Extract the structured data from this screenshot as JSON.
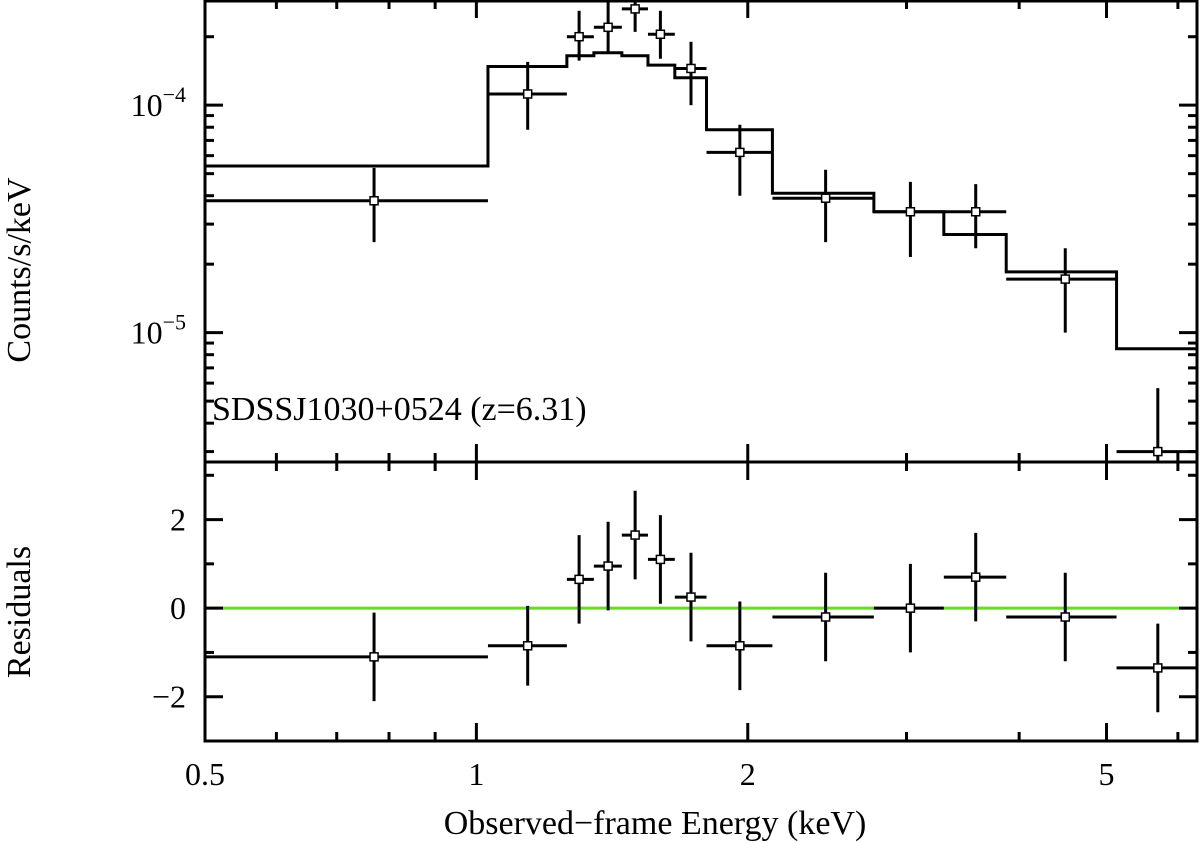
{
  "chart_data": [
    {
      "panel": "spectrum",
      "type": "scatter",
      "title": "",
      "annotation": "SDSSJ1030+0524 (z=6.31)",
      "xlabel": "Observed−frame Energy (keV)",
      "ylabel": "Counts/s/keV",
      "xscale": "log",
      "yscale": "log",
      "xlim": [
        0.5,
        6.3
      ],
      "ylim": [
        2.7e-06,
        0.00029
      ],
      "ytick_labels": [
        {
          "value": 0.0001,
          "base": "10",
          "exp": "−4"
        },
        {
          "value": 1e-05,
          "base": "10",
          "exp": "−5"
        }
      ],
      "grid": false,
      "data": {
        "x_low": [
          0.5,
          1.03,
          1.26,
          1.35,
          1.45,
          1.55,
          1.66,
          1.8,
          2.13,
          2.76,
          3.3,
          3.87,
          5.13
        ],
        "x_high": [
          1.03,
          1.26,
          1.35,
          1.45,
          1.55,
          1.66,
          1.8,
          2.13,
          2.76,
          3.3,
          3.87,
          5.13,
          6.3
        ],
        "x_center": [
          0.77,
          1.14,
          1.3,
          1.4,
          1.5,
          1.6,
          1.73,
          1.96,
          2.44,
          3.03,
          3.58,
          4.5,
          5.7
        ],
        "y": [
          3.8e-05,
          0.000112,
          0.0002,
          0.00022,
          0.000265,
          0.000205,
          0.000145,
          6.2e-05,
          3.9e-05,
          3.4e-05,
          3.4e-05,
          1.72e-05,
          3e-06
        ],
        "y_err_low": [
          2.5e-05,
          7.8e-05,
          0.000157,
          0.00017,
          0.00021,
          0.00016,
          0.0001,
          4e-05,
          2.5e-05,
          2.15e-05,
          2.35e-05,
          1e-05,
          2.4e-06
        ],
        "y_err_high": [
          5.3e-05,
          0.000155,
          0.00026,
          0.000285,
          0.0003,
          0.00026,
          0.00019,
          8.2e-05,
          5.2e-05,
          4.6e-05,
          4.5e-05,
          2.35e-05,
          5.7e-06
        ],
        "model": [
          5.4e-05,
          0.000148,
          0.000165,
          0.00017,
          0.000165,
          0.00015,
          0.000132,
          7.8e-05,
          4.1e-05,
          3.4e-05,
          2.7e-05,
          1.85e-05,
          8.5e-06
        ]
      }
    },
    {
      "panel": "residuals",
      "type": "scatter",
      "title": "",
      "xlabel": "Observed−frame Energy (keV)",
      "ylabel": "Residuals",
      "xscale": "log",
      "xlim": [
        0.5,
        6.3
      ],
      "ylim": [
        -3.0,
        3.3
      ],
      "x_ticks": [
        0.5,
        1,
        2,
        5
      ],
      "x_tick_labels": [
        "0.5",
        "1",
        "2",
        "5"
      ],
      "y_ticks": [
        -2,
        0,
        2
      ],
      "y_tick_labels": [
        "−2",
        "0",
        "2"
      ],
      "zero_line_color": "#66dd22",
      "grid": false,
      "data": {
        "x_low": [
          0.5,
          1.03,
          1.26,
          1.35,
          1.45,
          1.55,
          1.66,
          1.8,
          2.13,
          2.76,
          3.3,
          3.87,
          5.13
        ],
        "x_high": [
          1.03,
          1.26,
          1.35,
          1.45,
          1.55,
          1.66,
          1.8,
          2.13,
          2.76,
          3.3,
          3.87,
          5.13,
          6.3
        ],
        "x_center": [
          0.77,
          1.14,
          1.3,
          1.4,
          1.5,
          1.6,
          1.73,
          1.96,
          2.44,
          3.03,
          3.58,
          4.5,
          5.7
        ],
        "y": [
          -1.1,
          -0.85,
          0.65,
          0.95,
          1.65,
          1.1,
          0.25,
          -0.85,
          -0.2,
          0.0,
          0.7,
          -0.2,
          -1.35
        ],
        "y_err": [
          1.0,
          0.9,
          1.0,
          1.0,
          1.0,
          1.0,
          1.0,
          1.0,
          1.0,
          1.0,
          1.0,
          1.0,
          1.0
        ]
      }
    }
  ]
}
